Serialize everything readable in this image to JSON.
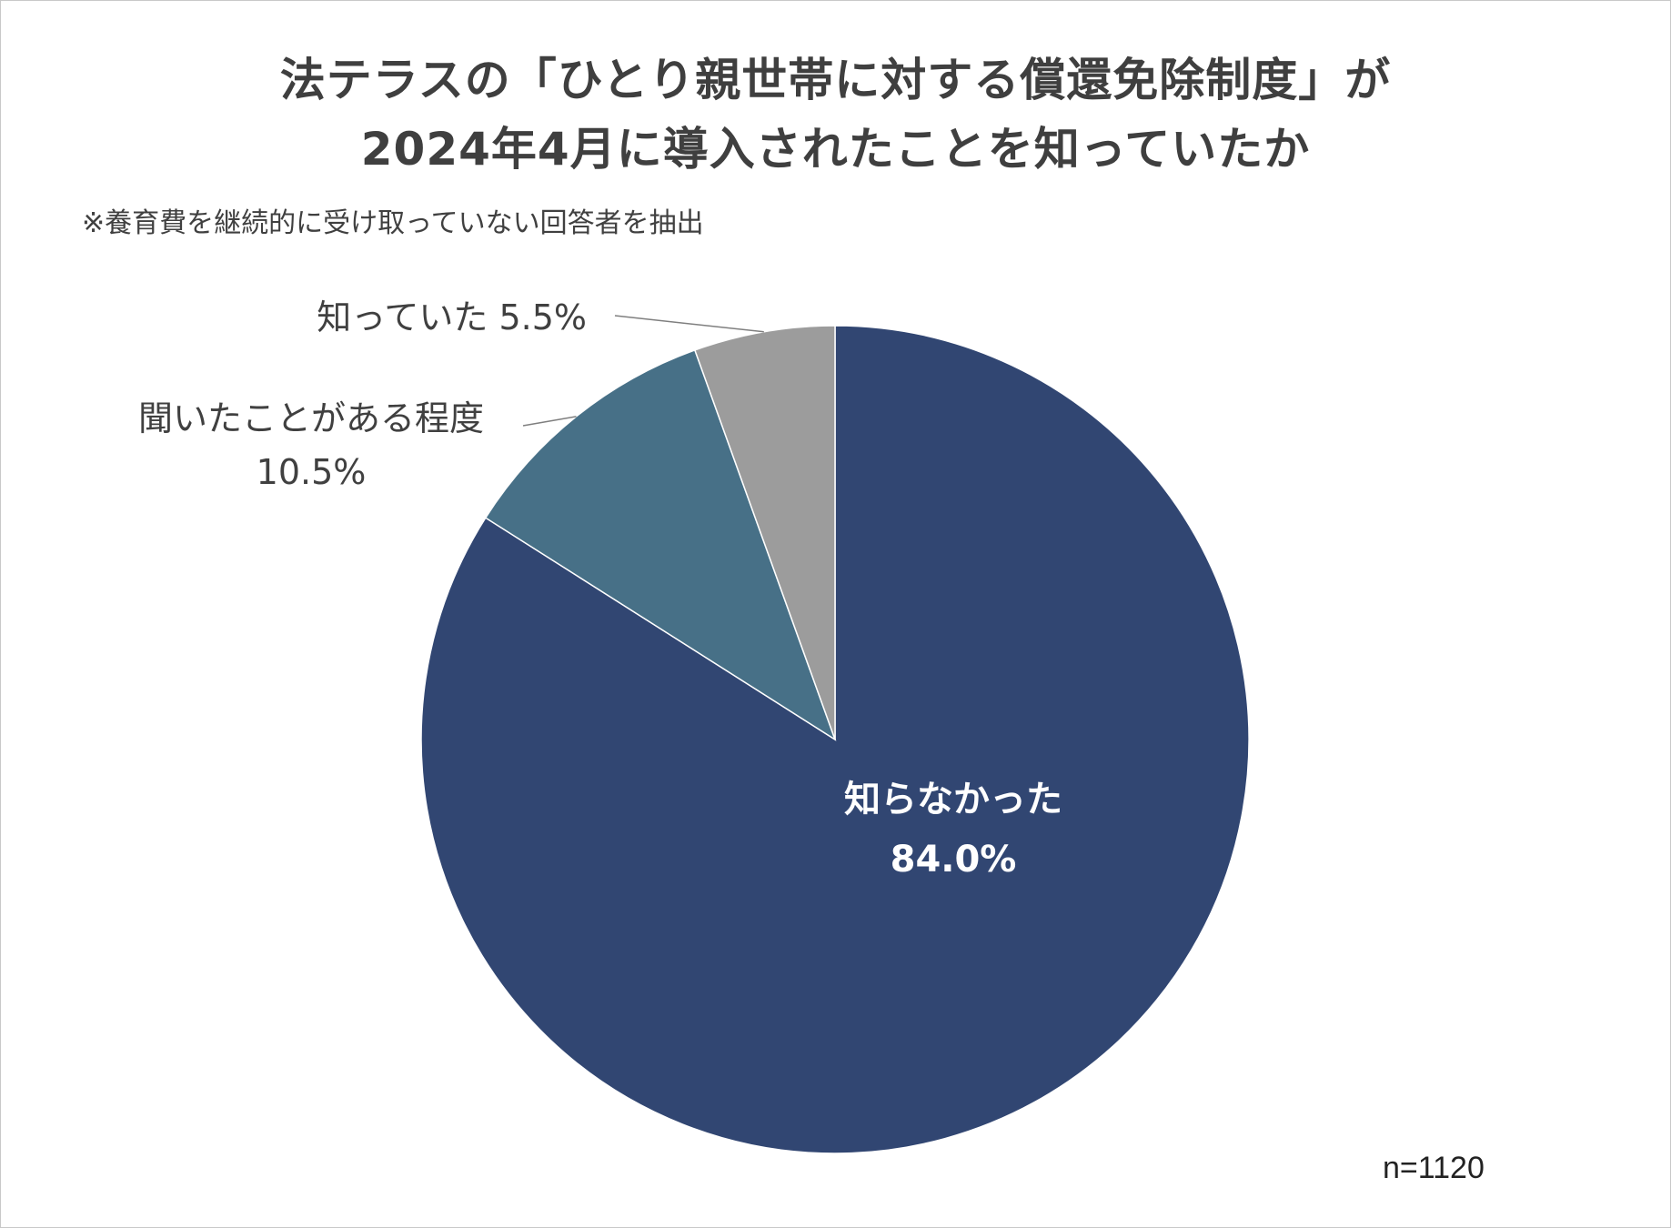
{
  "title_line1": "法テラスの「ひとり親世帯に対する償還免除制度」が",
  "title_line2": "2024年4月に導入されたことを知っていたか",
  "note": "※養育費を継続的に受け取っていない回答者を抽出",
  "sample_size": "n=1120",
  "chart_data": {
    "type": "pie",
    "title": "法テラスの「ひとり親世帯に対する償還免除制度」が2024年4月に導入されたことを知っていたか",
    "slices": [
      {
        "label": "知らなかった",
        "value": 84.0,
        "value_label": "84.0%",
        "color": "#314672"
      },
      {
        "label": "聞いたことがある程度",
        "value": 10.5,
        "value_label": "10.5%",
        "color": "#477087"
      },
      {
        "label": "知っていた",
        "value": 5.5,
        "value_label": "5.5%",
        "color": "#9c9c9c"
      }
    ],
    "start_angle_deg": 0,
    "direction": "clockwise",
    "unit": "%"
  }
}
